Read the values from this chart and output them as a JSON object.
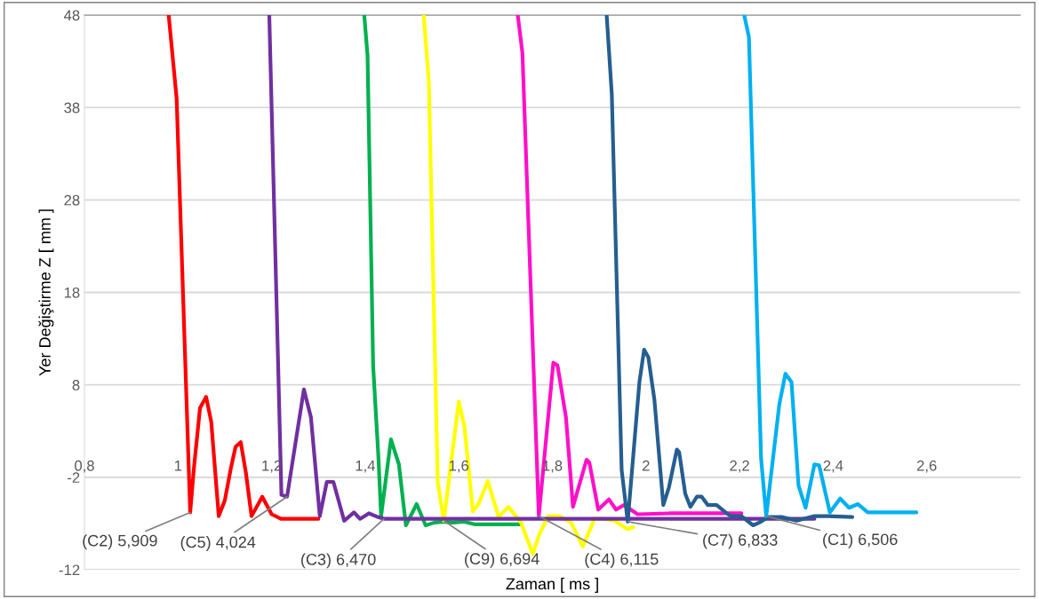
{
  "chart_data": {
    "type": "line",
    "xlabel": "Zaman [ ms ]",
    "ylabel": "Yer Değiştirme Z [ mm ]",
    "xlim": [
      0.8,
      2.8
    ],
    "xticks": [
      {
        "value": 0.8,
        "label": "0,8"
      },
      {
        "value": 1,
        "label": "1"
      },
      {
        "value": 1.2,
        "label": "1,2"
      },
      {
        "value": 1.4,
        "label": "1,4"
      },
      {
        "value": 1.6,
        "label": "1,6"
      },
      {
        "value": 1.8,
        "label": "1,8"
      },
      {
        "value": 2,
        "label": "2"
      },
      {
        "value": 2.2,
        "label": "2,2"
      },
      {
        "value": 2.4,
        "label": "2,4"
      },
      {
        "value": 2.6,
        "label": "2,6"
      }
    ],
    "ylim": [
      -12,
      48
    ],
    "yticks": [
      -12,
      -2,
      8,
      18,
      28,
      38,
      48
    ],
    "grid": "y",
    "marker": "none",
    "line_style": "solid",
    "series": [
      {
        "color": "#ff0000",
        "x": [
          0.98,
          0.997,
          1.026,
          1.034,
          1.047,
          1.06,
          1.071,
          1.087,
          1.1,
          1.113,
          1.123,
          1.134,
          1.145,
          1.157,
          1.168,
          1.18,
          1.2,
          1.22,
          1.3
        ],
        "values": [
          48,
          39,
          -5.8,
          -1,
          5.5,
          6.7,
          4,
          -6.2,
          -4.5,
          -1,
          1.3,
          1.8,
          -1.5,
          -6.2,
          -5.2,
          -4.1,
          -6,
          -6.5,
          -6.5
        ]
      },
      {
        "color": "#00b050",
        "x": [
          1.398,
          1.405,
          1.417,
          1.428,
          1.434,
          1.455,
          1.472,
          1.487,
          1.51,
          1.529,
          1.548,
          1.567,
          1.587,
          1.61,
          1.635,
          1.66,
          1.734
        ],
        "values": [
          48,
          43.6,
          10,
          0.4,
          -6.2,
          2.1,
          -0.6,
          -7.2,
          -4.9,
          -7.2,
          -6.9,
          -6.8,
          -6.9,
          -6.8,
          -7.1,
          -7.1,
          -7.1
        ]
      },
      {
        "color": "#ffff00",
        "x": [
          1.525,
          1.536,
          1.555,
          1.568,
          1.6,
          1.612,
          1.63,
          1.643,
          1.662,
          1.685,
          1.706,
          1.733,
          1.758,
          1.772,
          1.791,
          1.815,
          1.84,
          1.865,
          1.89,
          1.908,
          1.933,
          1.96,
          1.973
        ],
        "values": [
          48,
          40.8,
          -2.5,
          -6.7,
          6.2,
          3.5,
          -5.7,
          -4.8,
          -2.4,
          -6.3,
          -5.2,
          -6.9,
          -10.3,
          -8.2,
          -6.2,
          -6.2,
          -6.9,
          -9.5,
          -6.5,
          -6.5,
          -6.7,
          -7.6,
          -7.4
        ]
      },
      {
        "color": "#ff10c8",
        "x": [
          1.726,
          1.736,
          1.771,
          1.802,
          1.811,
          1.829,
          1.844,
          1.873,
          1.879,
          1.898,
          1.921,
          1.936,
          1.953,
          1.982,
          2.05,
          2.12,
          2.204
        ],
        "values": [
          48,
          43.9,
          -6.2,
          10.4,
          10.1,
          4.5,
          -5.2,
          -0.1,
          -0.4,
          -5.5,
          -4.4,
          -5.5,
          -5,
          -6,
          -5.9,
          -5.9,
          -5.9
        ]
      },
      {
        "color": "#7030a0",
        "x": [
          1.195,
          1.221,
          1.233,
          1.269,
          1.284,
          1.303,
          1.318,
          1.332,
          1.355,
          1.376,
          1.389,
          1.408,
          1.427,
          1.442,
          1.7,
          2.0,
          2.36
        ],
        "values": [
          48,
          -3.9,
          -4.1,
          7.5,
          4.5,
          -6.2,
          -2.5,
          -2.5,
          -6.7,
          -5.8,
          -6.5,
          -5.9,
          -6.3,
          -6.5,
          -6.5,
          -6.5,
          -6.5
        ]
      },
      {
        "color": "#255e91",
        "x": [
          1.916,
          1.927,
          1.948,
          1.961,
          1.986,
          1.996,
          2.005,
          2.018,
          2.037,
          2.049,
          2.066,
          2.071,
          2.084,
          2.095,
          2.109,
          2.119,
          2.132,
          2.151,
          2.17,
          2.181,
          2.204,
          2.229,
          2.242,
          2.261,
          2.29,
          2.322,
          2.36,
          2.39,
          2.441
        ],
        "values": [
          48,
          39.4,
          -1.2,
          -6.8,
          8.3,
          11.8,
          11,
          6.4,
          -5,
          -3.1,
          1,
          0.7,
          -3.8,
          -5.2,
          -4.1,
          -4.1,
          -5,
          -5,
          -5.8,
          -6.2,
          -6.2,
          -7.2,
          -6.9,
          -6.3,
          -6.3,
          -6.7,
          -6.2,
          -6.2,
          -6.3
        ]
      },
      {
        "color": "#00b0f0",
        "x": [
          2.21,
          2.22,
          2.246,
          2.257,
          2.285,
          2.298,
          2.311,
          2.326,
          2.341,
          2.36,
          2.37,
          2.393,
          2.415,
          2.434,
          2.453,
          2.474,
          2.525,
          2.578
        ],
        "values": [
          48,
          45.6,
          0,
          -6.2,
          5.9,
          9.2,
          8.3,
          -2.9,
          -5.3,
          -0.6,
          -0.7,
          -5.8,
          -4.3,
          -5.3,
          -4.9,
          -5.8,
          -5.8,
          -5.8
        ]
      }
    ],
    "annotations": [
      {
        "text": "(C2) 5,909",
        "x": 1.026,
        "y": -5.8
      },
      {
        "text": "(C5) 4,024",
        "x": 1.233,
        "y": -4.1
      },
      {
        "text": "(C3) 6,470",
        "x": 1.44,
        "y": -6.5
      },
      {
        "text": "(C9) 6,694",
        "x": 1.568,
        "y": -6.7
      },
      {
        "text": "(C4) 6,115",
        "x": 1.771,
        "y": -6.2
      },
      {
        "text": "(C7) 6,833",
        "x": 1.961,
        "y": -6.8
      },
      {
        "text": "(C1) 6,506",
        "x": 2.257,
        "y": -6.2
      }
    ]
  }
}
